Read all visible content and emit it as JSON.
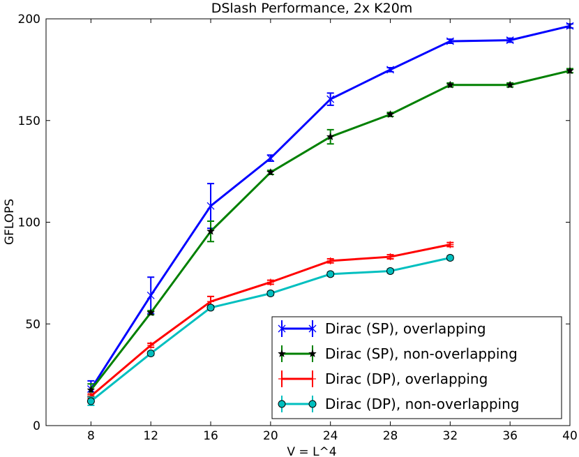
{
  "chart_data": {
    "type": "line",
    "title": "DSlash Performance, 2x K20m",
    "xlabel": "V = L^4",
    "ylabel": "GFLOPS",
    "xlim": [
      5,
      40
    ],
    "ylim": [
      0,
      200
    ],
    "xticks": [
      8,
      12,
      16,
      20,
      24,
      28,
      32,
      36,
      40
    ],
    "yticks": [
      0,
      50,
      100,
      150,
      200
    ],
    "legend_position": "bottom-right",
    "series": [
      {
        "name": "Dirac (SP), overlapping",
        "color": "#0000ff",
        "marker": "x",
        "x": [
          8,
          12,
          16,
          20,
          24,
          28,
          32,
          36,
          40
        ],
        "y": [
          18,
          64,
          108,
          131.5,
          160.5,
          175,
          189,
          189.5,
          196.5
        ],
        "err": [
          4,
          9,
          11,
          1.5,
          3,
          1,
          1,
          1,
          1
        ]
      },
      {
        "name": "Dirac (SP), non-overlapping",
        "color": "#008000",
        "marker": "star",
        "x": [
          8,
          12,
          16,
          20,
          24,
          28,
          32,
          36,
          40
        ],
        "y": [
          17.5,
          55.5,
          95.5,
          124.5,
          142,
          153,
          167.5,
          167.5,
          174.5
        ],
        "err": [
          3,
          1,
          5,
          1,
          3.5,
          1,
          1,
          1,
          1
        ]
      },
      {
        "name": "Dirac (DP), overlapping",
        "color": "#ff0000",
        "marker": "plus",
        "x": [
          8,
          12,
          16,
          20,
          24,
          28,
          32
        ],
        "y": [
          14.5,
          39.5,
          61,
          70.5,
          81,
          83,
          89
        ],
        "err": [
          1,
          1,
          2.5,
          1,
          1,
          1,
          1
        ]
      },
      {
        "name": "Dirac (DP), non-overlapping",
        "color": "#00bfbf",
        "marker": "circle",
        "x": [
          8,
          12,
          16,
          20,
          24,
          28,
          32
        ],
        "y": [
          12,
          35.5,
          58,
          65,
          74.5,
          76,
          82.5
        ],
        "err": [
          2,
          1,
          1,
          1,
          1,
          1,
          1
        ]
      }
    ]
  }
}
